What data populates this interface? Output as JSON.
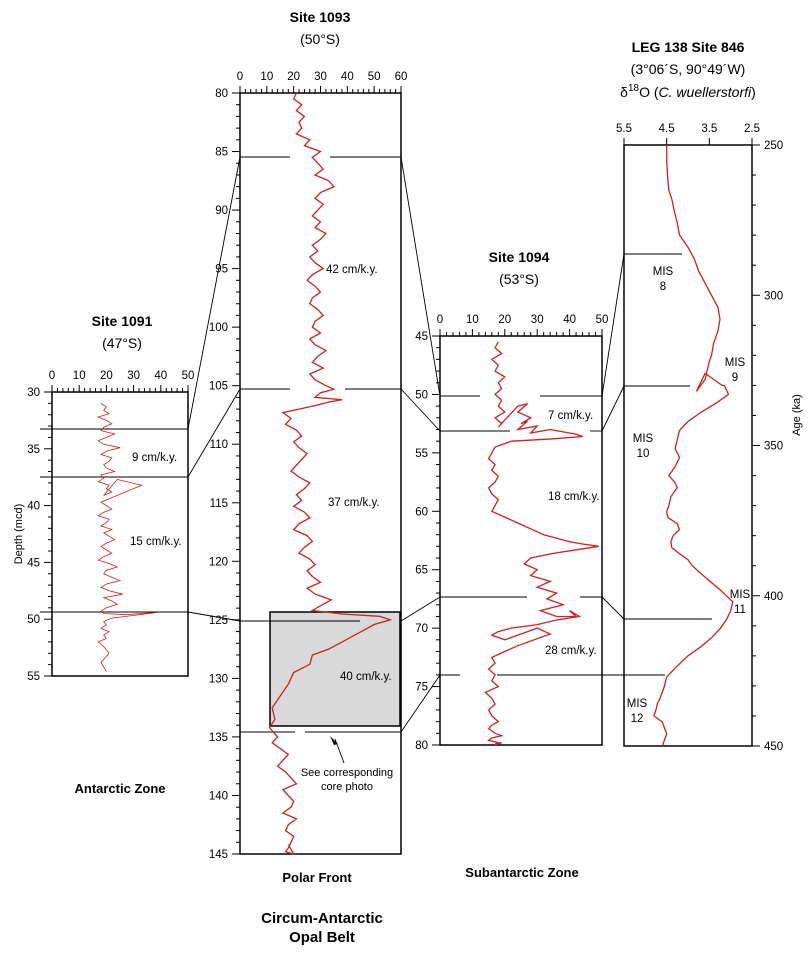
{
  "figure": {
    "belt_line1": "Circum-Antarctic",
    "belt_line2": "Opal Belt",
    "zones": {
      "antarctic": "Antarctic Zone",
      "polar_front": "Polar Front",
      "subantarctic": "Subantarctic Zone"
    },
    "photo_note_line1": "See corresponding",
    "photo_note_line2": "core photo"
  },
  "panels": {
    "p1091": {
      "title": "Site 1091",
      "subtitle": "(47°S)",
      "ylabel": "Depth (mcd)",
      "rates": [
        "9 cm/k.y.",
        "15 cm/k.y."
      ]
    },
    "p1093": {
      "title": "Site 1093",
      "subtitle": "(50°S)",
      "rates": [
        "42 cm/k.y.",
        "37 cm/k.y.",
        "40 cm/k.y."
      ]
    },
    "p1094": {
      "title": "Site 1094",
      "subtitle": "(53°S)",
      "rates": [
        "7 cm/k.y.",
        "18 cm/k.y.",
        "28 cm/k.y."
      ]
    },
    "p846": {
      "title": "LEG 138  Site 846",
      "subtitle": "(3°06´S, 90°49´W)",
      "proxy_prefix": "δ",
      "proxy_sup": "18",
      "proxy_o": "O (",
      "proxy_species": "C. wuellerstorfi",
      "proxy_close": ")",
      "ylabel": "Age (ka)",
      "mis": [
        [
          "MIS",
          "8"
        ],
        [
          "MIS",
          "9"
        ],
        [
          "MIS",
          "10"
        ],
        [
          "MIS",
          "11"
        ],
        [
          "MIS",
          "12"
        ]
      ]
    }
  },
  "chart_data": [
    {
      "type": "line",
      "title": "Site 1091",
      "xlim": [
        0,
        50
      ],
      "ylim": [
        30,
        55
      ],
      "xticks": [
        0,
        10,
        20,
        30,
        40,
        50
      ],
      "yticks": [
        30,
        35,
        40,
        45,
        50,
        55
      ],
      "ylabel": "Depth (mcd)",
      "y_inverted": true,
      "color": "#cc2222",
      "x": [
        18,
        20,
        19,
        21,
        17,
        20,
        22,
        19,
        18,
        23,
        20,
        17,
        19,
        25,
        20,
        18,
        22,
        21,
        19,
        20,
        23,
        18,
        19,
        17,
        21,
        20,
        22,
        19,
        24,
        33,
        21,
        18,
        20,
        22,
        19,
        17,
        21,
        20,
        18,
        22,
        19,
        21,
        23,
        20,
        18,
        20,
        22,
        19,
        17,
        21,
        24,
        20,
        19,
        22,
        25,
        20,
        18,
        21,
        26,
        19,
        22,
        24,
        20,
        18,
        19,
        27,
        39,
        22,
        19,
        20,
        18,
        21,
        19,
        20,
        17,
        19,
        21,
        18,
        20
      ],
      "y": [
        31.0,
        31.3,
        31.6,
        31.9,
        32.2,
        32.5,
        32.8,
        33.1,
        33.4,
        33.7,
        34.0,
        34.3,
        34.6,
        34.9,
        35.2,
        35.5,
        35.8,
        36.1,
        36.4,
        36.7,
        37.0,
        37.3,
        37.6,
        37.9,
        38.2,
        38.5,
        38.8,
        39.1,
        37.7,
        38.2,
        39.4,
        39.7,
        40.0,
        40.3,
        40.6,
        40.9,
        41.2,
        41.5,
        41.8,
        42.1,
        42.4,
        42.7,
        43.0,
        43.3,
        43.6,
        43.9,
        44.2,
        44.5,
        44.8,
        45.1,
        45.4,
        45.7,
        46.0,
        46.3,
        46.6,
        46.9,
        47.2,
        47.5,
        47.8,
        48.1,
        48.4,
        48.7,
        49.0,
        49.3,
        49.5,
        49.6,
        49.4,
        49.9,
        50.2,
        50.5,
        50.8,
        51.1,
        51.4,
        51.7,
        52.0,
        52.4,
        53.0,
        53.8,
        54.6
      ]
    },
    {
      "type": "line",
      "title": "Site 1093",
      "xlim": [
        0,
        60
      ],
      "ylim": [
        80,
        145
      ],
      "xticks": [
        0,
        10,
        20,
        30,
        40,
        50,
        60
      ],
      "yticks": [
        80,
        85,
        90,
        95,
        100,
        105,
        110,
        115,
        120,
        125,
        130,
        135,
        140,
        145
      ],
      "y_inverted": true,
      "color": "#cc2222",
      "x": [
        21,
        20,
        23,
        21,
        24,
        22,
        23,
        21,
        26,
        24,
        30,
        27,
        29,
        31,
        28,
        33,
        35,
        30,
        28,
        31,
        29,
        27,
        30,
        28,
        32,
        30,
        27,
        29,
        26,
        28,
        31,
        27,
        25,
        28,
        30,
        27,
        26,
        29,
        31,
        28,
        27,
        30,
        26,
        28,
        32,
        29,
        27,
        31,
        26,
        28,
        32,
        35,
        30,
        28,
        38,
        33,
        28,
        22,
        16,
        19,
        17,
        21,
        23,
        20,
        22,
        25,
        23,
        21,
        19,
        22,
        26,
        24,
        21,
        23,
        20,
        24,
        26,
        22,
        20,
        25,
        27,
        24,
        22,
        26,
        28,
        25,
        27,
        30,
        25,
        28,
        34,
        30,
        27,
        38,
        52,
        56,
        50,
        46,
        42,
        38,
        33,
        27,
        26,
        20,
        18,
        15,
        12,
        13,
        11,
        14,
        12,
        15,
        18,
        16,
        14,
        17,
        19,
        21,
        16,
        18,
        20,
        19,
        16,
        21,
        18,
        17,
        20,
        19,
        18,
        17,
        20,
        19,
        18
      ],
      "y": [
        80.0,
        80.5,
        81.0,
        81.5,
        82.0,
        82.5,
        83.0,
        83.5,
        84.0,
        84.5,
        85.0,
        85.5,
        86.0,
        86.5,
        87.0,
        87.5,
        88.0,
        88.5,
        89.0,
        89.5,
        90.0,
        90.5,
        91.0,
        91.5,
        92.0,
        92.5,
        93.0,
        93.5,
        94.0,
        94.5,
        95.0,
        95.5,
        96.0,
        96.5,
        97.0,
        97.5,
        98.0,
        98.5,
        99.0,
        99.5,
        100.0,
        100.5,
        101.0,
        101.5,
        102.0,
        102.5,
        103.0,
        103.5,
        104.0,
        104.5,
        105.0,
        105.3,
        105.6,
        106.0,
        106.2,
        106.4,
        106.7,
        107.0,
        107.3,
        107.8,
        108.3,
        108.8,
        109.3,
        109.8,
        110.3,
        110.8,
        111.3,
        111.8,
        112.3,
        112.8,
        113.3,
        113.8,
        114.3,
        114.8,
        115.3,
        115.8,
        116.3,
        116.8,
        117.3,
        117.8,
        118.3,
        118.8,
        119.3,
        119.8,
        120.3,
        120.8,
        121.3,
        121.8,
        122.3,
        122.8,
        123.3,
        123.8,
        124.2,
        124.5,
        124.7,
        125.0,
        125.4,
        125.9,
        126.4,
        126.9,
        127.5,
        128.0,
        128.8,
        129.5,
        130.5,
        131.5,
        132.5,
        133.5,
        134.2,
        135.0,
        135.5,
        136.0,
        136.5,
        137.0,
        137.5,
        138.0,
        138.5,
        139.0,
        139.5,
        140.0,
        140.5,
        141.0,
        141.5,
        142.0,
        142.5,
        143.0,
        143.5,
        144.0,
        144.5,
        144.8,
        145.0,
        144.6,
        144.2
      ]
    },
    {
      "type": "line",
      "title": "Site 1094",
      "xlim": [
        0,
        50
      ],
      "ylim": [
        45,
        80
      ],
      "xticks": [
        0,
        10,
        20,
        30,
        40,
        50
      ],
      "yticks": [
        45,
        50,
        55,
        60,
        65,
        70,
        75,
        80
      ],
      "y_inverted": true,
      "color": "#cc2222",
      "x": [
        18,
        17,
        19,
        16,
        18,
        17,
        20,
        18,
        19,
        17,
        19,
        18,
        20,
        17,
        19,
        18,
        24,
        27,
        24,
        28,
        25,
        27,
        24,
        30,
        28,
        34,
        42,
        44,
        35,
        22,
        17,
        16,
        15,
        17,
        16,
        18,
        17,
        15,
        16,
        18,
        17,
        16,
        20,
        24,
        28,
        32,
        36,
        40,
        44,
        49,
        42,
        35,
        28,
        26,
        30,
        28,
        34,
        30,
        36,
        33,
        38,
        31,
        36,
        42,
        40,
        43,
        36,
        30,
        22,
        18,
        16,
        20,
        25,
        30,
        34,
        24,
        20,
        16,
        17,
        15,
        17,
        16,
        18,
        14,
        16,
        17,
        15,
        16,
        18,
        16,
        15,
        17,
        19,
        16,
        15,
        18,
        17,
        19,
        17
      ],
      "y": [
        45.5,
        46.0,
        46.5,
        47.0,
        47.5,
        48.0,
        48.5,
        49.0,
        49.5,
        50.0,
        50.5,
        51.0,
        51.5,
        52.0,
        52.5,
        52.8,
        51.0,
        50.8,
        51.5,
        52.0,
        52.5,
        52.3,
        53.0,
        52.7,
        53.3,
        53.0,
        53.4,
        53.6,
        53.8,
        54.0,
        54.5,
        55.0,
        55.5,
        56.0,
        56.5,
        57.0,
        57.5,
        58.0,
        58.5,
        59.0,
        59.5,
        60.0,
        60.5,
        61.0,
        61.5,
        62.0,
        62.3,
        62.6,
        62.8,
        63.0,
        63.3,
        63.6,
        64.0,
        64.5,
        65.0,
        65.5,
        66.0,
        66.5,
        67.0,
        67.5,
        68.0,
        68.5,
        69.0,
        69.0,
        68.5,
        69.0,
        69.3,
        69.7,
        70.0,
        70.3,
        70.6,
        71.0,
        70.5,
        70.0,
        70.5,
        71.5,
        72.0,
        72.5,
        73.0,
        73.5,
        74.0,
        74.5,
        75.0,
        75.5,
        76.0,
        76.5,
        77.0,
        77.5,
        78.0,
        78.3,
        78.6,
        79.0,
        79.2,
        79.4,
        79.6,
        79.8,
        80.0,
        79.8,
        79.9
      ]
    },
    {
      "type": "line",
      "title": "LEG 138  Site 846",
      "xlabel": "δ18O (C. wuellerstorfi)",
      "xlim": [
        5.5,
        2.5
      ],
      "ylim": [
        250,
        450
      ],
      "xticks": [
        5.5,
        4.5,
        3.5,
        2.5
      ],
      "yticks": [
        250,
        300,
        350,
        400,
        450
      ],
      "ylabel": "Age (ka)",
      "y_inverted": true,
      "x_reversed": true,
      "color": "#cc2222",
      "x": [
        4.5,
        4.5,
        4.48,
        4.45,
        4.38,
        4.32,
        4.25,
        4.2,
        4.0,
        3.85,
        3.75,
        3.6,
        3.45,
        3.3,
        3.25,
        3.3,
        3.4,
        3.45,
        3.5,
        3.55,
        3.6,
        3.7,
        3.8,
        3.6,
        3.4,
        3.2,
        3.15,
        3.05,
        3.35,
        3.7,
        4.0,
        4.2,
        4.25,
        4.3,
        4.2,
        4.3,
        4.35,
        4.45,
        4.32,
        4.25,
        4.4,
        4.45,
        4.5,
        4.47,
        4.25,
        4.2,
        4.35,
        4.4,
        4.38,
        4.2,
        4.0,
        3.9,
        3.75,
        3.5,
        3.25,
        3.1,
        2.95,
        3.0,
        3.1,
        3.25,
        3.45,
        3.7,
        4.0,
        4.3,
        4.5,
        4.55,
        4.6,
        4.65,
        4.72,
        4.75,
        4.8,
        4.6,
        4.55,
        4.5,
        4.55,
        4.6
      ],
      "y": [
        250,
        255,
        260,
        265,
        268,
        272,
        276,
        280,
        284,
        288,
        292,
        296,
        300,
        304,
        308,
        312,
        316,
        320,
        322,
        325,
        328,
        330,
        332,
        326,
        328,
        330,
        330,
        333,
        336,
        339,
        342,
        345,
        348,
        351,
        354,
        357,
        358,
        360,
        362,
        364,
        367,
        370,
        372,
        374,
        376,
        378,
        380,
        382,
        384,
        386,
        388,
        390,
        392,
        395,
        398,
        400,
        402,
        405,
        408,
        411,
        414,
        417,
        420,
        424,
        427,
        430,
        432,
        434,
        436,
        438,
        440,
        442,
        444,
        446,
        448,
        450
      ]
    }
  ]
}
